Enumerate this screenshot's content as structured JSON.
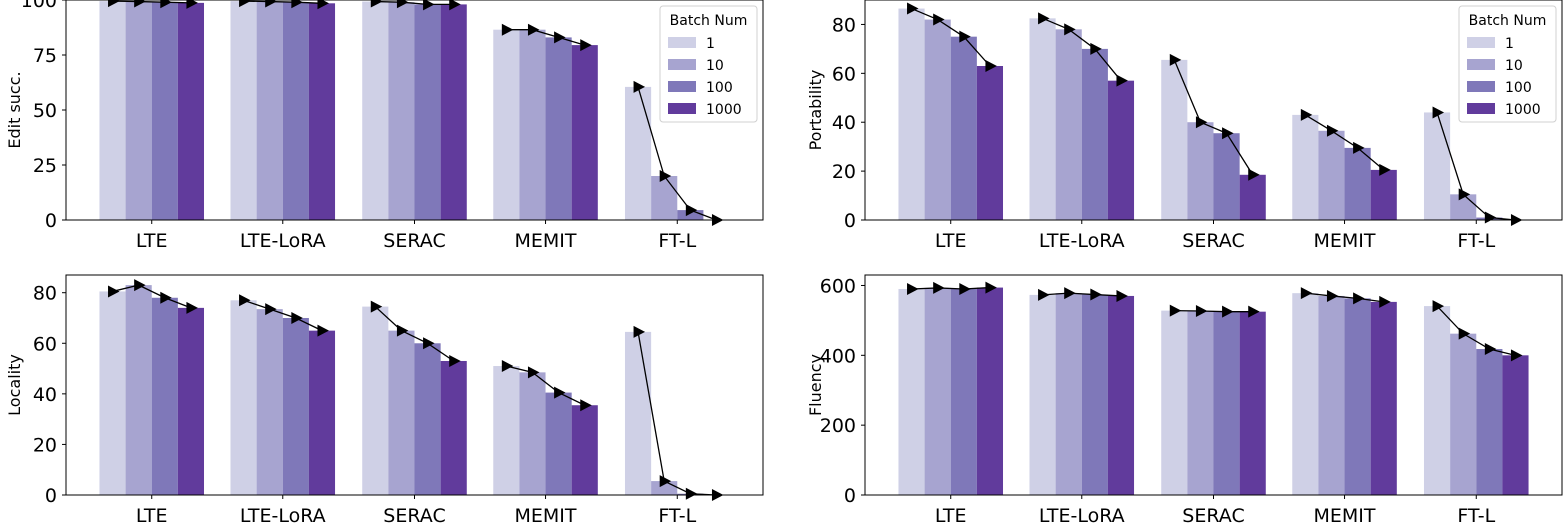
{
  "colors": {
    "1": "#cfd0e6",
    "10": "#a7a4d0",
    "100": "#7f78b9",
    "1000": "#613b9c"
  },
  "chart_data": [
    {
      "type": "bar",
      "ylabel": "Edit succ.",
      "ylim": [
        0,
        100
      ],
      "yticks": [
        0,
        25,
        50,
        75,
        100
      ],
      "categories": [
        "LTE",
        "LTE-LoRA",
        "SERAC",
        "MEMIT",
        "FT-L"
      ],
      "legend": {
        "title": "Batch Num",
        "placement": "top-right"
      },
      "series": [
        {
          "name": "1",
          "values": [
            99.5,
            99.5,
            99.3,
            86.5,
            60.5
          ]
        },
        {
          "name": "10",
          "values": [
            99.3,
            99.3,
            99.0,
            86.5,
            20.0
          ]
        },
        {
          "name": "100",
          "values": [
            99.0,
            99.0,
            98.0,
            83.0,
            4.5
          ]
        },
        {
          "name": "1000",
          "values": [
            98.7,
            98.5,
            98.0,
            79.5,
            0.0
          ]
        }
      ]
    },
    {
      "type": "bar",
      "ylabel": "Portability",
      "ylim": [
        0,
        90
      ],
      "yticks": [
        0,
        20,
        40,
        60,
        80
      ],
      "categories": [
        "LTE",
        "LTE-LoRA",
        "SERAC",
        "MEMIT",
        "FT-L"
      ],
      "legend": {
        "title": "Batch Num",
        "placement": "top-right"
      },
      "series": [
        {
          "name": "1",
          "values": [
            86.5,
            82.5,
            65.5,
            43.0,
            44.0
          ]
        },
        {
          "name": "10",
          "values": [
            82.0,
            78.0,
            40.0,
            36.5,
            10.5
          ]
        },
        {
          "name": "100",
          "values": [
            75.0,
            70.0,
            35.5,
            29.5,
            1.0
          ]
        },
        {
          "name": "1000",
          "values": [
            63.0,
            57.0,
            18.5,
            20.5,
            0.0
          ]
        }
      ]
    },
    {
      "type": "bar",
      "ylabel": "Locality",
      "ylim": [
        0,
        87
      ],
      "yticks": [
        0,
        20,
        40,
        60,
        80
      ],
      "categories": [
        "LTE",
        "LTE-LoRA",
        "SERAC",
        "MEMIT",
        "FT-L"
      ],
      "legend": null,
      "series": [
        {
          "name": "1",
          "values": [
            80.5,
            77.0,
            74.5,
            51.0,
            64.5
          ]
        },
        {
          "name": "10",
          "values": [
            83.0,
            73.5,
            65.0,
            48.5,
            5.5
          ]
        },
        {
          "name": "100",
          "values": [
            78.0,
            70.0,
            60.0,
            40.5,
            0.5
          ]
        },
        {
          "name": "1000",
          "values": [
            74.0,
            65.0,
            53.0,
            35.5,
            0.0
          ]
        }
      ]
    },
    {
      "type": "bar",
      "ylabel": "Fluency",
      "ylim": [
        0,
        630
      ],
      "yticks": [
        0,
        200,
        400,
        600
      ],
      "categories": [
        "LTE",
        "LTE-LoRA",
        "SERAC",
        "MEMIT",
        "FT-L"
      ],
      "legend": null,
      "series": [
        {
          "name": "1",
          "values": [
            590,
            573,
            528,
            578,
            541
          ]
        },
        {
          "name": "10",
          "values": [
            593,
            578,
            527,
            570,
            462
          ]
        },
        {
          "name": "100",
          "values": [
            590,
            574,
            525,
            563,
            418
          ]
        },
        {
          "name": "1000",
          "values": [
            594,
            570,
            525,
            553,
            400
          ]
        }
      ]
    }
  ]
}
